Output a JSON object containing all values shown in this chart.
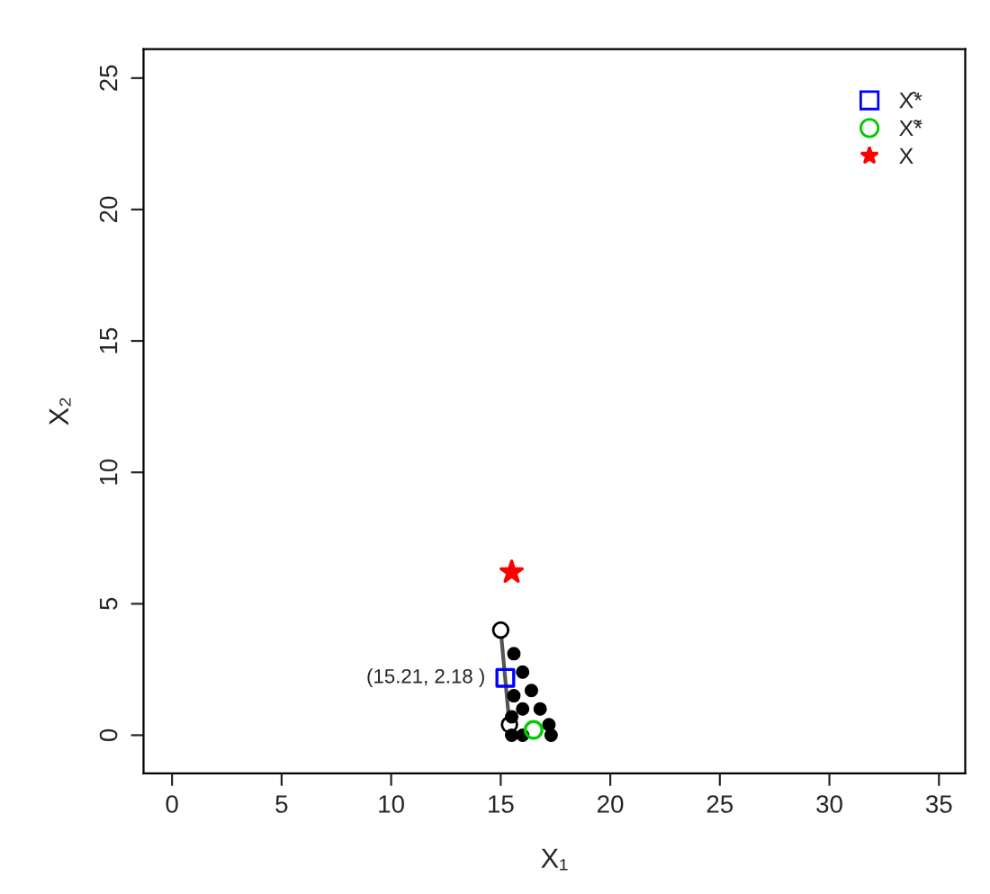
{
  "chart_data": {
    "type": "scatter",
    "xlabel": "X₁",
    "ylabel": "X₂",
    "xlim": [
      -1.3,
      36.2
    ],
    "ylim": [
      -1.45,
      26.1
    ],
    "xticks": [
      0,
      5,
      10,
      15,
      20,
      25,
      30,
      35
    ],
    "yticks": [
      0,
      5,
      10,
      15,
      20,
      25
    ],
    "grid": false,
    "legend": "top right",
    "annotations": [
      {
        "text": "(15.21, 2.18 )",
        "x": 15.21,
        "y": 2.18
      }
    ],
    "series": [
      {
        "color": "#000000",
        "marker": "circle",
        "x": [
          15.6,
          16.0,
          15.6,
          16.4,
          16.0,
          15.5,
          16.8,
          17.2,
          15.5,
          16.0,
          17.3
        ],
        "values": [
          3.1,
          2.4,
          1.5,
          1.7,
          1.0,
          0.7,
          1.0,
          0.4,
          0.0,
          0.0,
          0.0
        ]
      },
      {
        "type": "line",
        "color": "#555555",
        "marker": "circle",
        "x": [
          15.0,
          15.4
        ],
        "values": [
          4.0,
          0.4
        ]
      },
      {
        "type": "scatter",
        "name": "X̂*",
        "color": "#0000ff",
        "marker": "square",
        "x": [
          15.21
        ],
        "values": [
          2.18
        ]
      },
      {
        "type": "scatter",
        "name": "X̃*",
        "color": "#00cc00",
        "marker": "circle",
        "x": [
          16.5
        ],
        "values": [
          0.2
        ]
      },
      {
        "type": "scatter",
        "name": "X",
        "color": "#ff0000",
        "marker": "star",
        "x": [
          15.5
        ],
        "values": [
          6.2
        ]
      }
    ]
  }
}
